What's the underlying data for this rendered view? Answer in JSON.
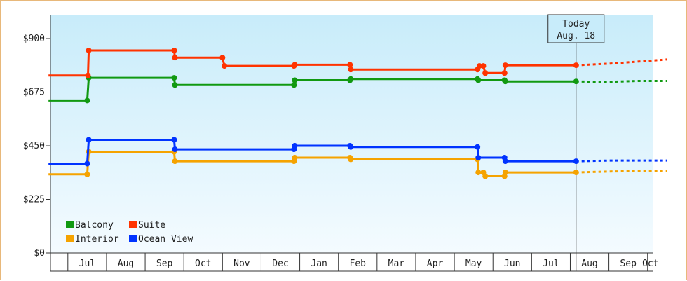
{
  "chart_data": {
    "type": "line",
    "title": "",
    "xlabel": "",
    "ylabel": "",
    "ylim": [
      0,
      1000
    ],
    "yticks": [
      {
        "value": 0,
        "label": "$0"
      },
      {
        "value": 225,
        "label": "$225"
      },
      {
        "value": 450,
        "label": "$450"
      },
      {
        "value": 675,
        "label": "$675"
      },
      {
        "value": 900,
        "label": "$900"
      }
    ],
    "xlim": [
      0,
      15.6
    ],
    "months": [
      "Jul",
      "Aug",
      "Sep",
      "Oct",
      "Nov",
      "Dec",
      "Jan",
      "Feb",
      "Mar",
      "Apr",
      "May",
      "Jun",
      "Jul",
      "Aug",
      "Sep",
      "Oct"
    ],
    "month_starts": [
      0.45,
      1.45,
      2.45,
      3.45,
      4.45,
      5.45,
      6.45,
      7.45,
      8.45,
      9.45,
      10.45,
      11.45,
      12.45,
      13.45,
      14.45,
      15.45
    ],
    "today": {
      "x": 13.6,
      "label_line1": "Today",
      "label_line2": "Aug. 18"
    },
    "grid": false,
    "legend_position": "bottom-left",
    "legend": [
      {
        "name": "Balcony",
        "color": "#119911"
      },
      {
        "name": "Suite",
        "color": "#ff3300"
      },
      {
        "name": "Interior",
        "color": "#f5a300"
      },
      {
        "name": "Ocean View",
        "color": "#0033ff"
      }
    ],
    "series": [
      {
        "name": "Balcony",
        "color": "#119911",
        "points": [
          [
            -0.05,
            640
          ],
          [
            0.95,
            640
          ],
          [
            0.99,
            735
          ],
          [
            3.2,
            735
          ],
          [
            3.22,
            705
          ],
          [
            6.3,
            705
          ],
          [
            6.32,
            725
          ],
          [
            7.75,
            725
          ],
          [
            7.77,
            730
          ],
          [
            11.05,
            730
          ],
          [
            11.07,
            725
          ],
          [
            11.75,
            725
          ],
          [
            11.77,
            720
          ],
          [
            13.6,
            720
          ]
        ],
        "forecast": [
          [
            13.6,
            720
          ],
          [
            14.4,
            718
          ],
          [
            15.2,
            722
          ],
          [
            15.95,
            722
          ]
        ]
      },
      {
        "name": "Suite",
        "color": "#ff3300",
        "points": [
          [
            -0.05,
            745
          ],
          [
            0.97,
            745
          ],
          [
            0.99,
            850
          ],
          [
            3.2,
            850
          ],
          [
            3.22,
            820
          ],
          [
            4.45,
            820
          ],
          [
            4.5,
            785
          ],
          [
            6.3,
            785
          ],
          [
            6.32,
            790
          ],
          [
            7.75,
            790
          ],
          [
            7.77,
            770
          ],
          [
            11.05,
            770
          ],
          [
            11.1,
            785
          ],
          [
            11.2,
            785
          ],
          [
            11.25,
            755
          ],
          [
            11.75,
            755
          ],
          [
            11.77,
            788
          ],
          [
            13.6,
            788
          ]
        ],
        "forecast": [
          [
            13.6,
            788
          ],
          [
            14.5,
            795
          ],
          [
            15.95,
            812
          ]
        ]
      },
      {
        "name": "Interior",
        "color": "#f5a300",
        "points": [
          [
            -0.05,
            330
          ],
          [
            0.95,
            330
          ],
          [
            0.99,
            425
          ],
          [
            3.2,
            425
          ],
          [
            3.22,
            385
          ],
          [
            6.3,
            385
          ],
          [
            6.32,
            400
          ],
          [
            7.75,
            400
          ],
          [
            7.77,
            393
          ],
          [
            11.05,
            393
          ],
          [
            11.07,
            338
          ],
          [
            11.2,
            338
          ],
          [
            11.25,
            322
          ],
          [
            11.75,
            322
          ],
          [
            11.77,
            338
          ],
          [
            13.6,
            338
          ]
        ],
        "forecast": [
          [
            13.6,
            338
          ],
          [
            14.5,
            342
          ],
          [
            15.95,
            345
          ]
        ]
      },
      {
        "name": "Ocean View",
        "color": "#0033ff",
        "points": [
          [
            -0.05,
            375
          ],
          [
            0.95,
            375
          ],
          [
            0.99,
            475
          ],
          [
            3.2,
            475
          ],
          [
            3.22,
            435
          ],
          [
            6.3,
            435
          ],
          [
            6.32,
            450
          ],
          [
            7.75,
            450
          ],
          [
            7.77,
            445
          ],
          [
            11.05,
            445
          ],
          [
            11.07,
            400
          ],
          [
            11.75,
            400
          ],
          [
            11.77,
            385
          ],
          [
            13.6,
            385
          ]
        ],
        "forecast": [
          [
            13.6,
            385
          ],
          [
            14.5,
            388
          ],
          [
            15.95,
            388
          ]
        ]
      }
    ]
  }
}
